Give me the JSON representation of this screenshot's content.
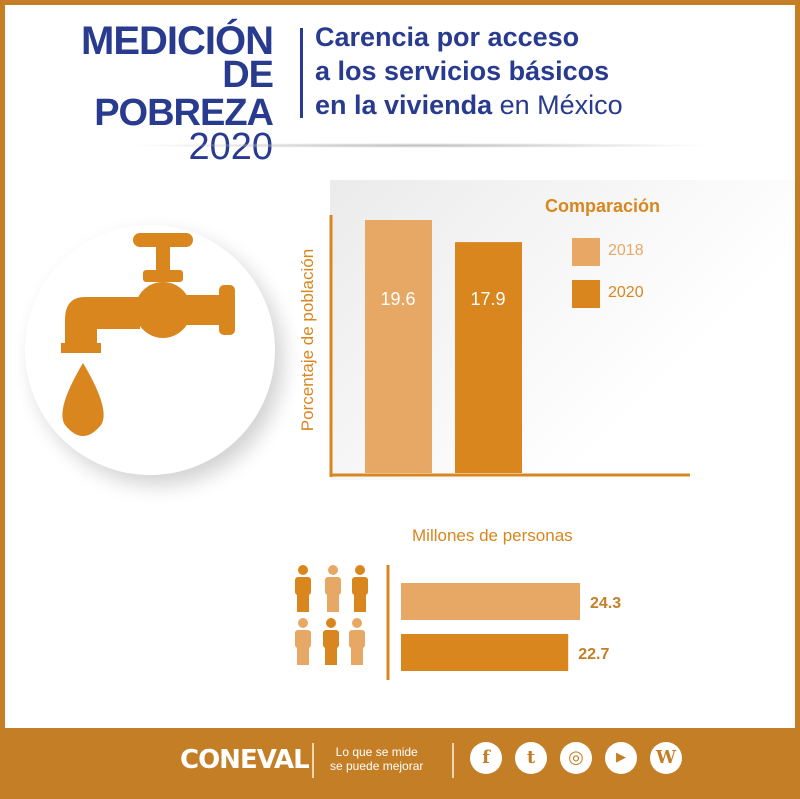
{
  "header": {
    "logo_line1": "MEDICIÓN",
    "logo_line2": "DE POBREZA",
    "logo_year": "2020",
    "title_line1": "Carencia por acceso",
    "title_line2": "a los servicios básicos",
    "title_line3_bold": "en la vivienda",
    "title_line3_normal": " en México"
  },
  "colors": {
    "c2018": "#e8a865",
    "c2020": "#d9861e",
    "accent": "#c47f26",
    "blue": "#283b8f"
  },
  "chart_data": [
    {
      "type": "bar",
      "title": "",
      "ylabel": "Porcentaje de población",
      "xlabel": "",
      "categories": [
        "2018",
        "2020"
      ],
      "values": [
        19.6,
        17.9
      ],
      "value_labels": [
        "19.6",
        "17.9"
      ],
      "ylim": [
        0,
        20
      ],
      "legend_title": "Comparación",
      "legend": [
        "2018",
        "2020"
      ],
      "legend_position": "top-right",
      "grid": false
    },
    {
      "type": "bar",
      "orientation": "horizontal",
      "title": "Millones de personas",
      "categories": [
        "2018",
        "2020"
      ],
      "values": [
        24.3,
        22.7
      ],
      "value_labels": [
        "24.3",
        "22.7"
      ],
      "xlim": [
        0,
        27
      ]
    }
  ],
  "footer": {
    "brand": "CONEVAL",
    "slogan_line1": "Lo que se mide",
    "slogan_line2": "se puede mejorar",
    "social": [
      {
        "name": "facebook-icon",
        "glyph": "f"
      },
      {
        "name": "twitter-icon",
        "glyph": "t"
      },
      {
        "name": "instagram-icon",
        "glyph": "◎"
      },
      {
        "name": "youtube-icon",
        "glyph": "▶"
      },
      {
        "name": "wordpress-icon",
        "glyph": "W"
      }
    ]
  }
}
